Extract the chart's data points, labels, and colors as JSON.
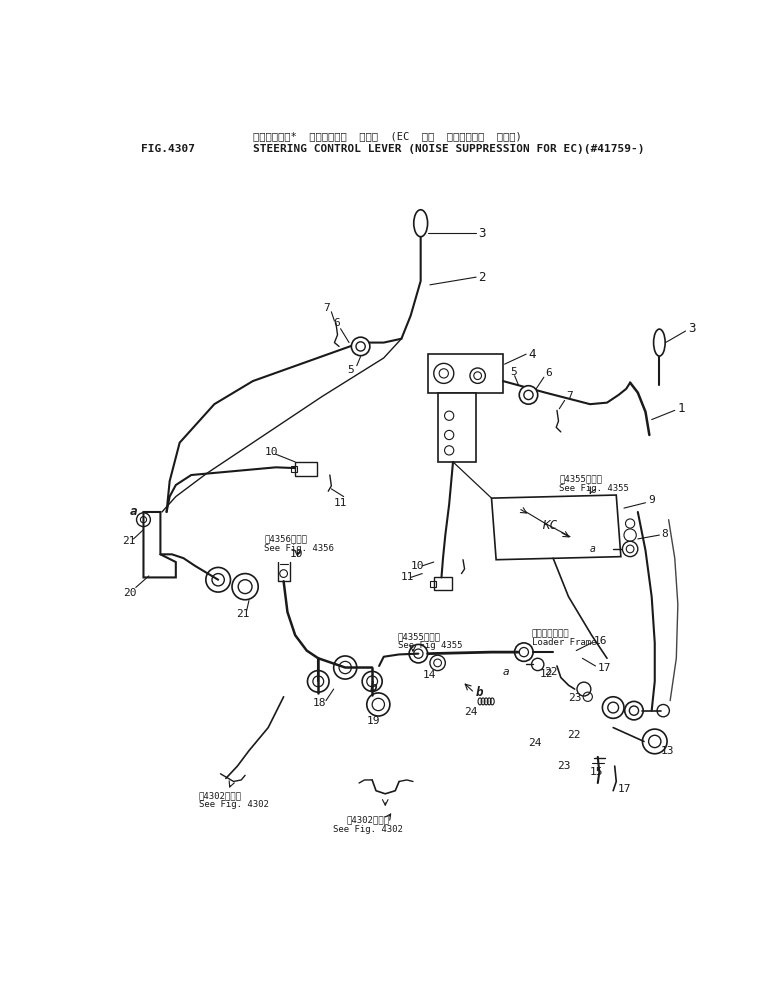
{
  "title_jp": "ステアリング*  コントロール  レバー  （EC  ムケ  テインシオン  ジヨウ）",
  "title_en": "STEERING CONTROL LEVER (NOISE SUPPRESSION FOR EC)(#41759-)",
  "fig_number": "FIG.4307",
  "bg_color": "#ffffff",
  "line_color": "#1a1a1a",
  "text_color": "#1a1a1a",
  "fig_size": [
    7.75,
    9.94
  ],
  "dpi": 100
}
